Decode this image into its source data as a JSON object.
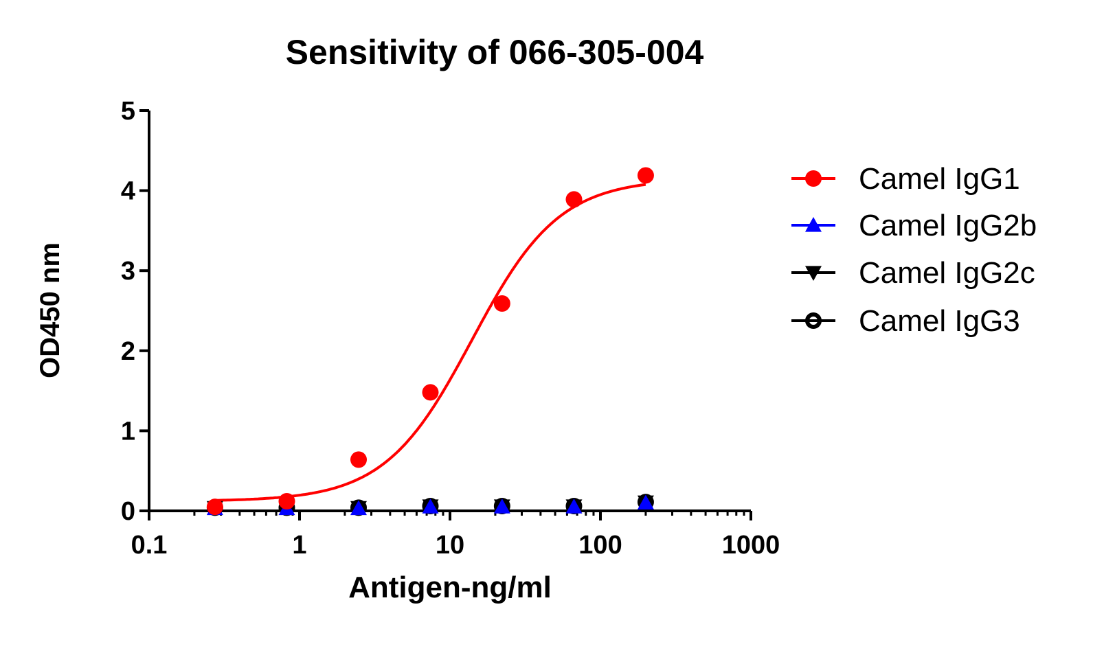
{
  "chart_data": {
    "type": "scatter",
    "title": "Sensitivity of  066-305-004",
    "xlabel": "Antigen-ng/ml",
    "ylabel": "OD450 nm",
    "xscale": "log",
    "xlim": [
      0.1,
      1000
    ],
    "ylim": [
      0,
      5
    ],
    "xticks": [
      "0.1",
      "1",
      "10",
      "100",
      "1000"
    ],
    "yticks": [
      "0",
      "1",
      "2",
      "3",
      "4",
      "5"
    ],
    "grid": false,
    "legend_position": "right",
    "x": [
      0.274,
      0.823,
      2.47,
      7.41,
      22.2,
      66.7,
      200
    ],
    "series": [
      {
        "name": "Camel IgG1",
        "color": "#ff0000",
        "marker": "circle",
        "fit": "sigmoidal",
        "values": [
          0.05,
          0.12,
          0.64,
          1.48,
          2.59,
          3.89,
          4.19
        ]
      },
      {
        "name": "Camel IgG2b",
        "color": "#0000ff",
        "marker": "triangle-up",
        "values": [
          0.03,
          0.03,
          0.03,
          0.05,
          0.05,
          0.05,
          0.1
        ]
      },
      {
        "name": "Camel IgG2c",
        "color": "#000000",
        "marker": "triangle-down",
        "values": [
          0.04,
          0.04,
          0.04,
          0.06,
          0.06,
          0.06,
          0.11
        ]
      },
      {
        "name": "Camel IgG3",
        "color": "#000000",
        "marker": "open-circle",
        "values": [
          0.04,
          0.04,
          0.04,
          0.06,
          0.06,
          0.06,
          0.11
        ]
      }
    ]
  }
}
